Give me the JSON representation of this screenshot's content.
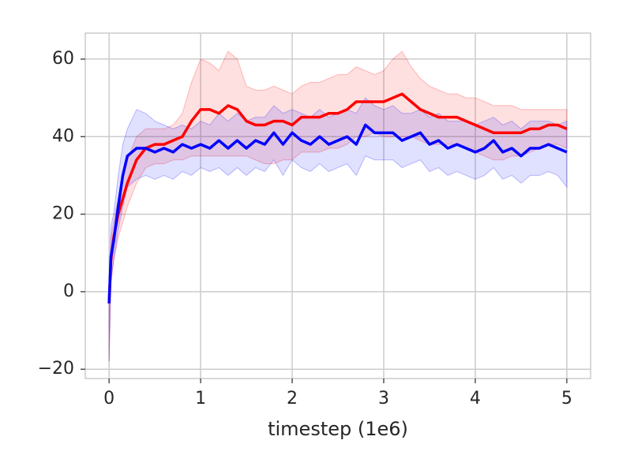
{
  "chart_data": {
    "type": "line",
    "xlabel": "timestep (1e6)",
    "x": [
      0,
      0.02,
      0.05,
      0.1,
      0.15,
      0.2,
      0.3,
      0.4,
      0.5,
      0.6,
      0.7,
      0.8,
      0.9,
      1.0,
      1.1,
      1.2,
      1.3,
      1.4,
      1.5,
      1.6,
      1.7,
      1.8,
      1.9,
      2.0,
      2.1,
      2.2,
      2.3,
      2.4,
      2.5,
      2.6,
      2.7,
      2.8,
      2.9,
      3.0,
      3.1,
      3.2,
      3.3,
      3.4,
      3.5,
      3.6,
      3.7,
      3.8,
      3.9,
      4.0,
      4.1,
      4.2,
      4.3,
      4.4,
      4.5,
      4.6,
      4.7,
      4.8,
      4.9,
      5.0
    ],
    "series": [
      {
        "color": "#ff0000",
        "values": [
          -3,
          8,
          14,
          20,
          24,
          28,
          34,
          37,
          38,
          38,
          39,
          40,
          44,
          47,
          47,
          46,
          48,
          47,
          44,
          43,
          43,
          44,
          44,
          43,
          45,
          45,
          45,
          46,
          46,
          47,
          49,
          49,
          49,
          49,
          50,
          51,
          49,
          47,
          46,
          45,
          45,
          45,
          44,
          43,
          42,
          41,
          41,
          41,
          41,
          42,
          42,
          43,
          43,
          42
        ],
        "upper": [
          0,
          14,
          18,
          24,
          30,
          34,
          40,
          42,
          42,
          42,
          43,
          46,
          54,
          60,
          59,
          57,
          62,
          60,
          53,
          52,
          52,
          53,
          52,
          51,
          53,
          54,
          54,
          55,
          56,
          56,
          58,
          57,
          56,
          57,
          60,
          62,
          58,
          55,
          53,
          52,
          51,
          51,
          50,
          50,
          49,
          48,
          48,
          48,
          47,
          47,
          47,
          47,
          47,
          47
        ],
        "lower": [
          -18,
          2,
          8,
          14,
          18,
          22,
          28,
          32,
          33,
          33,
          34,
          34,
          35,
          35,
          35,
          35,
          35,
          35,
          35,
          34,
          33,
          33,
          34,
          34,
          36,
          36,
          36,
          37,
          37,
          38,
          40,
          40,
          41,
          40,
          40,
          40,
          40,
          39,
          38,
          38,
          38,
          38,
          37,
          36,
          35,
          34,
          34,
          35,
          35,
          36,
          37,
          38,
          38,
          37
        ]
      },
      {
        "color": "#0000ff",
        "values": [
          -3,
          9,
          13,
          22,
          30,
          35,
          37,
          37,
          36,
          37,
          36,
          38,
          37,
          38,
          37,
          39,
          37,
          39,
          37,
          39,
          38,
          41,
          38,
          41,
          39,
          38,
          40,
          38,
          39,
          40,
          38,
          43,
          41,
          41,
          41,
          39,
          40,
          41,
          38,
          39,
          37,
          38,
          37,
          36,
          37,
          39,
          36,
          37,
          35,
          37,
          37,
          38,
          37,
          36
        ],
        "upper": [
          0,
          17,
          20,
          30,
          38,
          42,
          47,
          46,
          44,
          43,
          42,
          43,
          42,
          44,
          43,
          46,
          44,
          46,
          44,
          45,
          45,
          48,
          46,
          47,
          46,
          45,
          47,
          45,
          46,
          47,
          46,
          50,
          48,
          47,
          48,
          46,
          46,
          47,
          45,
          46,
          44,
          44,
          44,
          43,
          44,
          45,
          43,
          44,
          42,
          44,
          44,
          44,
          43,
          44
        ],
        "lower": [
          -18,
          3,
          8,
          16,
          22,
          27,
          29,
          30,
          29,
          30,
          29,
          31,
          30,
          32,
          31,
          32,
          30,
          32,
          30,
          32,
          31,
          34,
          30,
          34,
          32,
          31,
          33,
          31,
          32,
          33,
          30,
          35,
          34,
          34,
          34,
          32,
          33,
          34,
          31,
          32,
          30,
          31,
          30,
          29,
          30,
          32,
          29,
          30,
          28,
          30,
          30,
          31,
          30,
          27
        ]
      }
    ],
    "xlim": [
      -0.26,
      5.26
    ],
    "xticks": [
      0,
      1,
      2,
      3,
      4,
      5
    ],
    "ylim": [
      -22.4,
      66.7
    ],
    "yticks": [
      {
        "value": -20,
        "label": "−20"
      },
      0,
      20,
      40,
      60
    ],
    "grid": true
  }
}
